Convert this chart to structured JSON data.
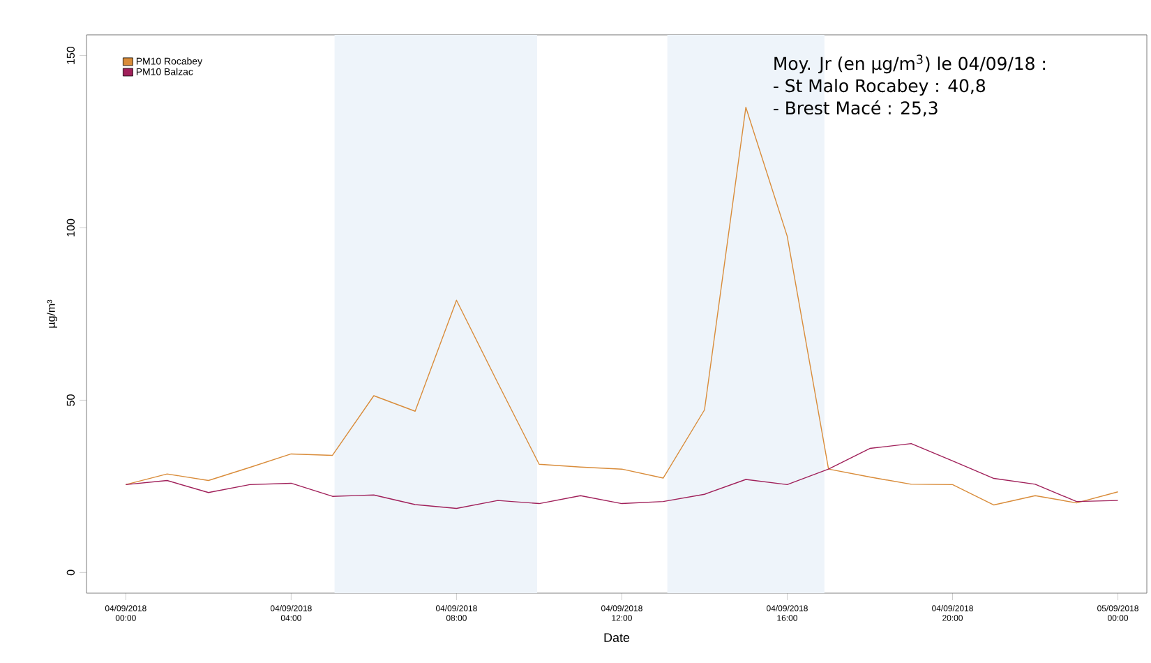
{
  "chart_data": {
    "type": "line",
    "xlabel": "Date",
    "ylabel": "µg/m³",
    "x": [
      "2018-09-04T00:00",
      "2018-09-04T01:00",
      "2018-09-04T02:00",
      "2018-09-04T03:00",
      "2018-09-04T04:00",
      "2018-09-04T05:00",
      "2018-09-04T06:00",
      "2018-09-04T07:00",
      "2018-09-04T08:00",
      "2018-09-04T09:00",
      "2018-09-04T10:00",
      "2018-09-04T11:00",
      "2018-09-04T12:00",
      "2018-09-04T13:00",
      "2018-09-04T14:00",
      "2018-09-04T15:00",
      "2018-09-04T16:00",
      "2018-09-04T17:00",
      "2018-09-04T18:00",
      "2018-09-04T19:00",
      "2018-09-04T20:00",
      "2018-09-04T21:00",
      "2018-09-04T22:00",
      "2018-09-04T23:00",
      "2018-09-05T00:00"
    ],
    "series": [
      {
        "name": "PM10 Rocabey",
        "color": "#d98c3a",
        "values": [
          25.5,
          28.6,
          26.7,
          30.5,
          34.4,
          34.0,
          51.3,
          46.8,
          79,
          55,
          31.4,
          30.6,
          30,
          27.4,
          47.2,
          135,
          97.6,
          30,
          27.7,
          25.6,
          25.5,
          19.6,
          22.3,
          20.2,
          23.4
        ]
      },
      {
        "name": "PM10 Balzac",
        "color": "#a0205a",
        "values": [
          25.5,
          26.7,
          23.2,
          25.5,
          25.9,
          22.1,
          22.5,
          19.7,
          18.6,
          20.9,
          20,
          22.3,
          20,
          20.6,
          22.7,
          27,
          25.5,
          30,
          36,
          37.4,
          32.4,
          27.3,
          25.6,
          20.6,
          20.9
        ]
      }
    ],
    "xlim": [
      "2018-09-03T23:03",
      "2018-09-05T00:42"
    ],
    "ylim": [
      -6,
      156
    ],
    "xticks": [
      {
        "value": "2018-09-04T00:00",
        "label": "04/09/2018 00:00"
      },
      {
        "value": "2018-09-04T04:00",
        "label": "04/09/2018 04:00"
      },
      {
        "value": "2018-09-04T08:00",
        "label": "04/09/2018 08:00"
      },
      {
        "value": "2018-09-04T12:00",
        "label": "04/09/2018 12:00"
      },
      {
        "value": "2018-09-04T16:00",
        "label": "04/09/2018 16:00"
      },
      {
        "value": "2018-09-04T20:00",
        "label": "04/09/2018 20:00"
      },
      {
        "value": "2018-09-05T00:00",
        "label": "05/09/2018 00:00"
      }
    ],
    "yticks": [
      0,
      50,
      100,
      150
    ],
    "bands": [
      {
        "axis": "x",
        "from": "2018-09-04T05:03",
        "to": "2018-09-04T09:57",
        "color": "#eef4fa"
      },
      {
        "axis": "x",
        "from": "2018-09-04T13:06",
        "to": "2018-09-04T16:54",
        "color": "#eef4fa"
      }
    ],
    "annotations": [
      "Moy. Jr (en µg/m$^{3}$) le 04/09/18 :",
      "- St Malo Rocabey : 40,8",
      "- Brest Macé : 25,3"
    ],
    "legend": "top left",
    "grid": false,
    "marker": "none",
    "line_style": "solid"
  }
}
